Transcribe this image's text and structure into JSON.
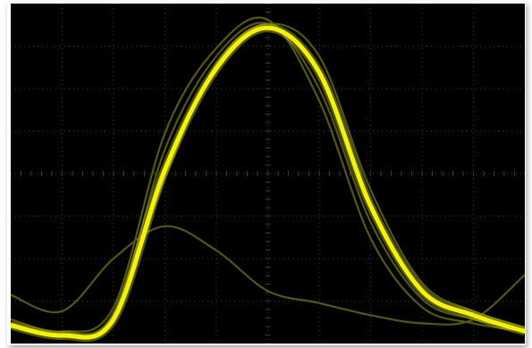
{
  "scope": {
    "background_color": "#000000",
    "grid_color": "#3a3a3a",
    "main_trace_color": "#f2f20a",
    "persistence_trace_color": "#56561a",
    "grid": {
      "divisions_x": 10,
      "divisions_y": 8,
      "minor_ticks_per_division": 5
    },
    "main_trace": [
      [
        0,
        0.25
      ],
      [
        2,
        0.0
      ],
      [
        4,
        0.4
      ],
      [
        6,
        4.1
      ],
      [
        8,
        6.6
      ],
      [
        10,
        7.6
      ],
      [
        12,
        6.5
      ],
      [
        14,
        3.2
      ],
      [
        16,
        1.1
      ],
      [
        18,
        0.5
      ],
      [
        20,
        0.1
      ]
    ],
    "persistence_traces": [
      [
        [
          0,
          1.0
        ],
        [
          2,
          0.6
        ],
        [
          4,
          1.9
        ],
        [
          6,
          2.7
        ],
        [
          8,
          2.1
        ],
        [
          10,
          1.1
        ],
        [
          12,
          0.8
        ],
        [
          14,
          0.5
        ],
        [
          16,
          0.3
        ],
        [
          18,
          0.4
        ],
        [
          20,
          1.5
        ]
      ],
      [
        [
          0,
          0.4
        ],
        [
          2,
          0.1
        ],
        [
          4,
          0.7
        ],
        [
          6,
          5.0
        ],
        [
          8,
          7.1
        ],
        [
          10,
          7.8
        ],
        [
          12,
          5.8
        ],
        [
          14,
          2.4
        ],
        [
          16,
          0.7
        ],
        [
          18,
          0.3
        ],
        [
          20,
          0.1
        ]
      ],
      [
        [
          0,
          0.3
        ],
        [
          2,
          0.05
        ],
        [
          4,
          0.5
        ],
        [
          6,
          4.6
        ],
        [
          8,
          6.9
        ],
        [
          10,
          7.7
        ],
        [
          12,
          6.1
        ],
        [
          14,
          2.8
        ],
        [
          16,
          0.9
        ],
        [
          18,
          0.4
        ],
        [
          20,
          0.15
        ]
      ],
      [
        [
          0,
          0.2
        ],
        [
          2,
          0.0
        ],
        [
          4,
          0.45
        ],
        [
          6,
          3.9
        ],
        [
          8,
          6.7
        ],
        [
          10,
          7.7
        ],
        [
          12,
          6.9
        ],
        [
          14,
          3.6
        ],
        [
          16,
          1.3
        ],
        [
          18,
          0.6
        ],
        [
          20,
          0.2
        ]
      ]
    ]
  }
}
